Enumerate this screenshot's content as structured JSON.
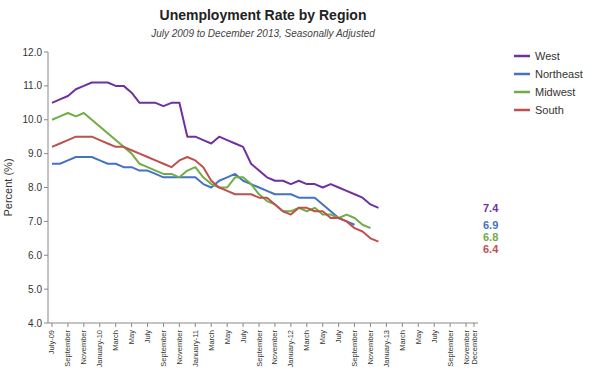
{
  "chart_data": {
    "type": "line",
    "title": "Unemployment Rate by Region",
    "subtitle": "July 2009 to December 2013, Seasonally Adjusted",
    "y_label": "Percent (%)",
    "categories": [
      "July-09",
      null,
      "September",
      null,
      "November",
      null,
      "January-10",
      null,
      "March",
      null,
      "May",
      null,
      "July",
      null,
      "September",
      null,
      "November",
      null,
      "January-11",
      null,
      "March",
      null,
      "May",
      null,
      "July",
      null,
      "September",
      null,
      "November",
      null,
      "January-12",
      null,
      "March",
      null,
      "May",
      null,
      "July",
      null,
      "September",
      null,
      "November",
      null,
      "January-13",
      null,
      "March",
      null,
      "May",
      null,
      "July",
      null,
      "September",
      null,
      "November",
      "December"
    ],
    "ylim": [
      4.0,
      12.0
    ],
    "yticks": [
      {
        "value": 4.0,
        "label": "4.0"
      },
      {
        "value": 5.0,
        "label": "5.0"
      },
      {
        "value": 6.0,
        "label": "6.0"
      },
      {
        "value": 7.0,
        "label": "7.0"
      },
      {
        "value": 8.0,
        "label": "8.0"
      },
      {
        "value": 9.0,
        "label": "9.0"
      },
      {
        "value": 10.0,
        "label": "10.0"
      },
      {
        "value": 11.0,
        "label": "11.0"
      },
      {
        "value": 12.0,
        "label": "12.0"
      }
    ],
    "grid": false,
    "legend": "right",
    "series": [
      {
        "name": "West",
        "color": "#7030a0",
        "values": [
          10.5,
          10.6,
          10.7,
          10.9,
          11.0,
          11.1,
          11.1,
          11.1,
          11.0,
          11.0,
          10.8,
          10.5,
          10.5,
          10.5,
          10.4,
          10.5,
          10.5,
          9.5,
          9.5,
          9.4,
          9.3,
          9.5,
          9.4,
          9.3,
          9.2,
          8.7,
          8.5,
          8.3,
          8.2,
          8.2,
          8.1,
          8.2,
          8.1,
          8.1,
          8.0,
          8.1,
          8.0,
          7.9,
          7.8,
          7.7,
          7.5,
          7.4,
          null,
          null,
          null,
          null,
          null,
          null,
          null,
          null,
          null,
          null,
          null,
          null
        ]
      },
      {
        "name": "Northeast",
        "color": "#4472c4",
        "values": [
          8.7,
          8.7,
          8.8,
          8.9,
          8.9,
          8.9,
          8.8,
          8.7,
          8.7,
          8.6,
          8.6,
          8.5,
          8.5,
          8.4,
          8.3,
          8.3,
          8.3,
          8.3,
          8.3,
          8.1,
          8.0,
          8.2,
          8.3,
          8.4,
          8.2,
          8.1,
          8.0,
          7.9,
          7.8,
          7.8,
          7.8,
          7.7,
          7.7,
          7.7,
          7.5,
          7.3,
          7.1,
          7.0,
          6.9,
          null,
          null,
          null,
          null,
          null,
          null,
          null,
          null,
          null,
          null,
          null,
          null,
          null,
          null,
          null
        ]
      },
      {
        "name": "Midwest",
        "color": "#70ad47",
        "values": [
          10.0,
          10.1,
          10.2,
          10.1,
          10.2,
          10.0,
          9.8,
          9.6,
          9.4,
          9.2,
          9.0,
          8.7,
          8.6,
          8.5,
          8.4,
          8.4,
          8.3,
          8.5,
          8.6,
          8.3,
          8.1,
          8.0,
          8.0,
          8.3,
          8.3,
          8.1,
          7.8,
          7.6,
          7.5,
          7.3,
          7.3,
          7.4,
          7.3,
          7.4,
          7.2,
          7.2,
          7.1,
          7.2,
          7.1,
          6.9,
          6.8,
          null,
          null,
          null,
          null,
          null,
          null,
          null,
          null,
          null,
          null,
          null,
          null,
          null
        ]
      },
      {
        "name": "South",
        "color": "#c0504d",
        "values": [
          9.2,
          9.3,
          9.4,
          9.5,
          9.5,
          9.5,
          9.4,
          9.3,
          9.2,
          9.2,
          9.1,
          9.0,
          8.9,
          8.8,
          8.7,
          8.6,
          8.8,
          8.9,
          8.8,
          8.6,
          8.2,
          8.0,
          7.9,
          7.8,
          7.8,
          7.8,
          7.7,
          7.7,
          7.5,
          7.3,
          7.2,
          7.4,
          7.4,
          7.3,
          7.3,
          7.1,
          7.1,
          7.0,
          6.8,
          6.7,
          6.5,
          6.4,
          null,
          null,
          null,
          null,
          null,
          null,
          null,
          null,
          null,
          null,
          null,
          null
        ]
      }
    ],
    "annotations": [
      {
        "text": "7.4",
        "color": "#7030a0"
      },
      {
        "text": "6.9",
        "color": "#4472c4"
      },
      {
        "text": "6.8",
        "color": "#70ad47"
      },
      {
        "text": "6.4",
        "color": "#c0504d"
      }
    ]
  }
}
